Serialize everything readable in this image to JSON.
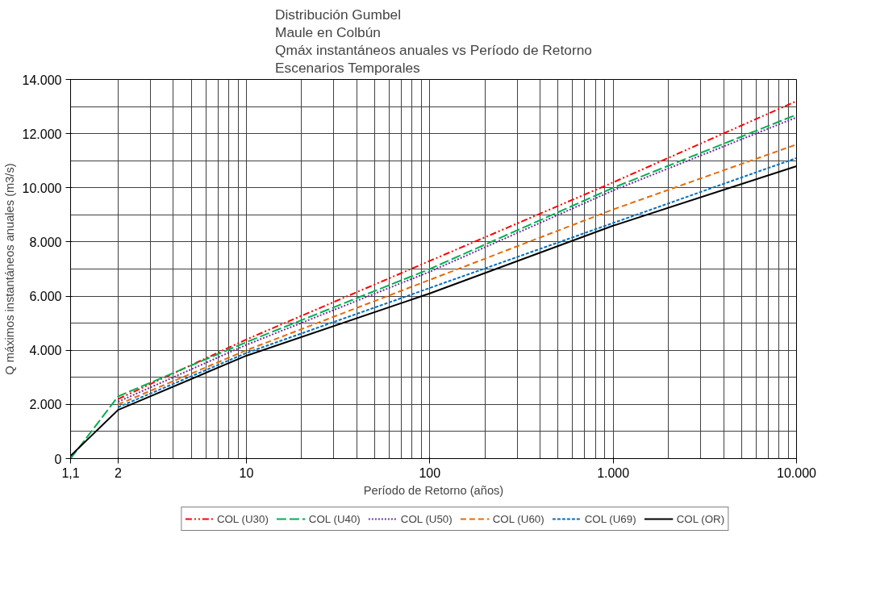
{
  "chart_data": {
    "type": "line",
    "title": "Distribución Gumbel\nMaule en Colbún\nQmáx instantáneos anuales vs Período de Retorno\nEscenarios Temporales",
    "xlabel": "Período de Retorno (años)",
    "ylabel": "Q máximos instantáneos anuales (m3/s)",
    "x": [
      1.1,
      2,
      10,
      100,
      1000,
      10000
    ],
    "series": [
      {
        "name": "COL (U30)",
        "color": "#ff0000",
        "line_style": "dashdotdot",
        "values": [
          null,
          2200,
          4400,
          7300,
          10200,
          13200
        ]
      },
      {
        "name": "COL (U40)",
        "color": "#00b050",
        "line_style": "longdash",
        "values": [
          0,
          2300,
          4300,
          7000,
          10000,
          12700
        ]
      },
      {
        "name": "COL (U50)",
        "color": "#7030a0",
        "line_style": "dotted",
        "values": [
          null,
          2100,
          4200,
          6900,
          9900,
          12600
        ]
      },
      {
        "name": "COL (U60)",
        "color": "#e46c0a",
        "line_style": "dashed",
        "values": [
          null,
          2000,
          4000,
          6600,
          9200,
          11600
        ]
      },
      {
        "name": "COL (U69)",
        "color": "#0070c0",
        "line_style": "shortdash",
        "values": [
          null,
          1900,
          3900,
          6300,
          8700,
          11100
        ]
      },
      {
        "name": "COL (OR)",
        "color": "#000000",
        "line_style": "solid",
        "values": [
          100,
          1800,
          3800,
          6100,
          8600,
          10800
        ]
      }
    ],
    "log": "x",
    "xlim": [
      1.1,
      10000
    ],
    "xticks": [
      {
        "value": 1.1,
        "label": "1,1"
      },
      2,
      10,
      100,
      {
        "value": 1000,
        "label": "1.000"
      },
      {
        "value": 10000,
        "label": "10.000"
      }
    ],
    "ylim": [
      0,
      14000
    ],
    "yticks": [
      0,
      {
        "value": 2000,
        "label": "2.000"
      },
      {
        "value": 4000,
        "label": "4.000"
      },
      {
        "value": 6000,
        "label": "6.000"
      },
      {
        "value": 8000,
        "label": "8.000"
      },
      {
        "value": 10000,
        "label": "10.000"
      },
      {
        "value": 12000,
        "label": "12.000"
      },
      {
        "value": 14000,
        "label": "14.000"
      }
    ],
    "grid": true,
    "legend": "bottom"
  }
}
